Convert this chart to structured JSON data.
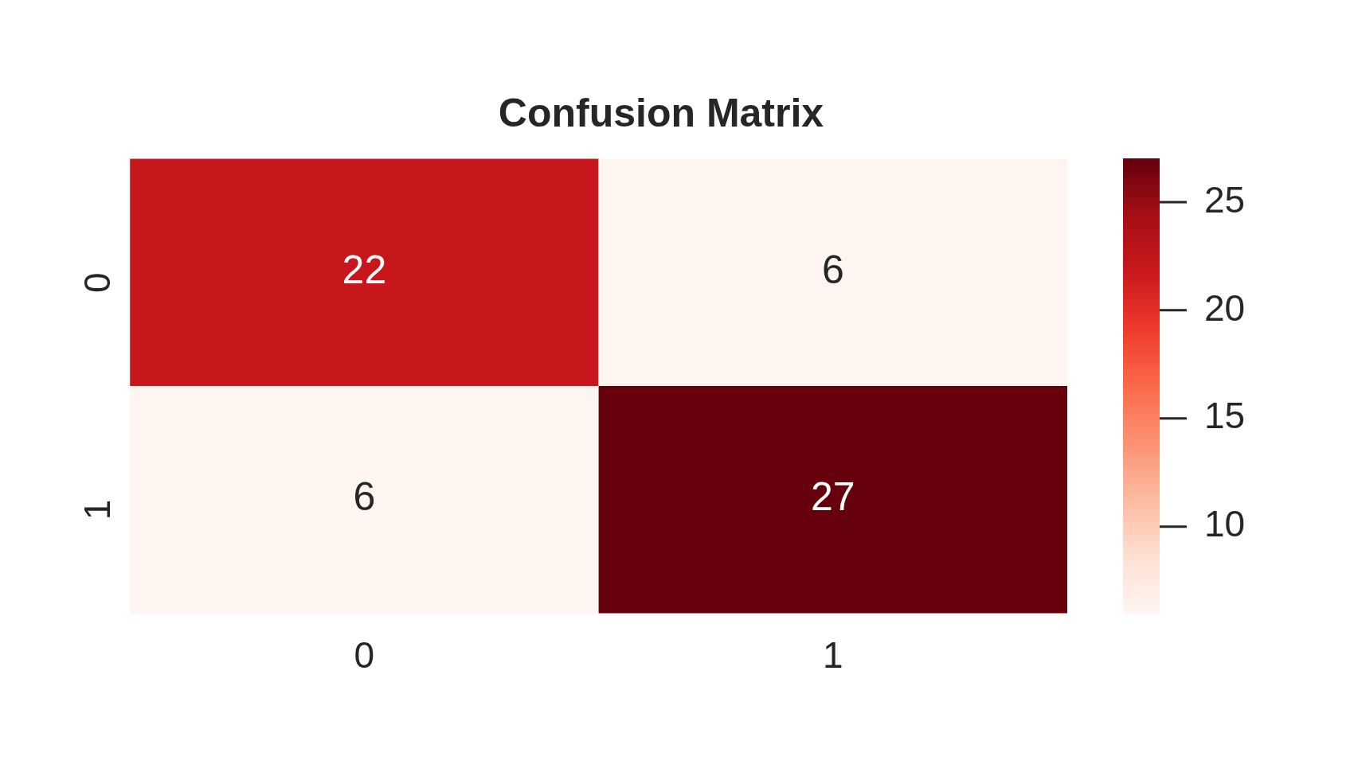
{
  "chart_data": {
    "type": "heatmap",
    "title": "Confusion Matrix",
    "categories": [
      "0",
      "1"
    ],
    "y_categories": [
      "0",
      "1"
    ],
    "cells": [
      [
        22,
        6
      ],
      [
        6,
        27
      ]
    ],
    "clim": [
      6,
      27
    ],
    "cticks": [
      10,
      15,
      20,
      25
    ],
    "data_labels": true
  }
}
